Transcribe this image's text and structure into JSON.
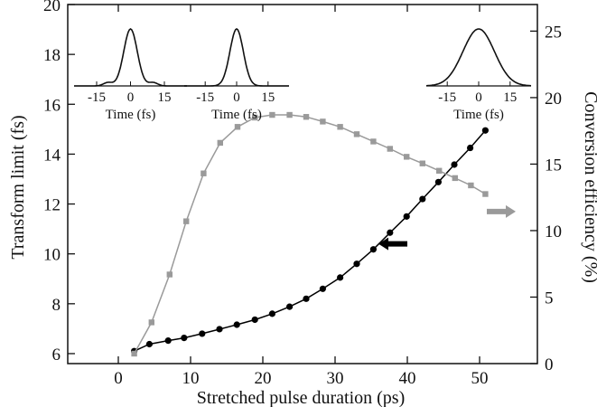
{
  "chart_data": {
    "type": "line",
    "xlabel": "Stretched pulse duration (ps)",
    "ylabel_left": "Transform limit (fs)",
    "ylabel_right": "Conversion efficiency (%)",
    "xlim": [
      -7,
      58
    ],
    "ylim_left": [
      5.6,
      20
    ],
    "ylim_right": [
      0,
      27
    ],
    "x_ticks": [
      0,
      10,
      20,
      30,
      40,
      50
    ],
    "y_left_ticks": [
      6,
      8,
      10,
      12,
      14,
      16,
      18,
      20
    ],
    "y_right_ticks": [
      0,
      5,
      10,
      15,
      20,
      25
    ],
    "grid": false,
    "series": [
      {
        "axis": "left",
        "color": "#000000",
        "marker": "circle",
        "x": [
          2.2,
          4.3,
          6.9,
          9.1,
          11.6,
          14,
          16.4,
          18.9,
          21.3,
          23.7,
          26,
          28.3,
          30.7,
          33,
          35.3,
          37.6,
          39.9,
          42.1,
          44.3,
          46.5,
          48.7,
          50.8
        ],
        "y": [
          6.1,
          6.38,
          6.52,
          6.63,
          6.8,
          6.98,
          7.16,
          7.36,
          7.6,
          7.88,
          8.2,
          8.6,
          9.05,
          9.6,
          10.18,
          10.85,
          11.5,
          12.2,
          12.88,
          13.58,
          14.25,
          14.95
        ]
      },
      {
        "axis": "right",
        "color": "#9a9a9a",
        "marker": "square",
        "x": [
          2.2,
          4.6,
          7.1,
          9.4,
          11.8,
          14.1,
          16.5,
          18.9,
          21.3,
          23.7,
          26,
          28.3,
          30.7,
          33,
          35.3,
          37.6,
          39.9,
          42.1,
          44.4,
          46.6,
          48.8,
          50.8
        ],
        "y": [
          0.75,
          3.1,
          6.7,
          10.7,
          14.3,
          16.6,
          17.8,
          18.5,
          18.7,
          18.7,
          18.55,
          18.2,
          17.8,
          17.25,
          16.7,
          16.15,
          15.55,
          15.05,
          14.5,
          13.95,
          13.4,
          12.75
        ]
      }
    ],
    "annotations": [
      {
        "type": "arrow",
        "direction": "left",
        "color": "#000000",
        "x": 38,
        "y_left": 10.4
      },
      {
        "type": "arrow",
        "direction": "right",
        "color": "#9a9a9a",
        "x": 53,
        "y_left": 11.7
      }
    ],
    "insets": [
      {
        "xlabel": "Time (fs)",
        "x_ticks": [
          -15,
          0,
          15
        ],
        "xlim": [
          -25,
          25
        ],
        "profile": "narrow-with-sidelobes"
      },
      {
        "xlabel": "Time (fs)",
        "x_ticks": [
          -15,
          0,
          15
        ],
        "xlim": [
          -25,
          25
        ],
        "profile": "narrow"
      },
      {
        "xlabel": "Time (fs)",
        "x_ticks": [
          -15,
          0,
          15
        ],
        "xlim": [
          -25,
          25
        ],
        "profile": "broad"
      }
    ]
  }
}
